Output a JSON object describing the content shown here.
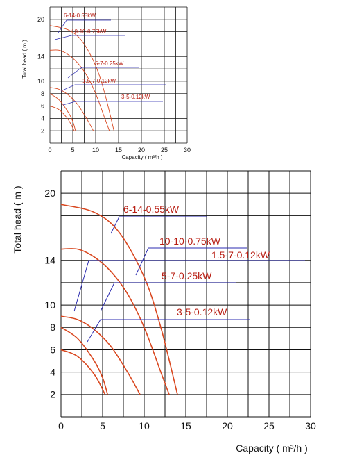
{
  "chart_data": [
    {
      "type": "line",
      "xlabel": "Capacity ( m³/h )",
      "ylabel": "Total head ( m )",
      "xlim": [
        0,
        30
      ],
      "ylim": [
        0,
        22
      ],
      "x_ticks": [
        "0",
        "5",
        "10",
        "15",
        "20",
        "25",
        "30"
      ],
      "y_ticks": [
        "2",
        "4",
        "6",
        "8",
        "10",
        "14",
        "20"
      ],
      "grid": true,
      "colors": {
        "curve": "#d9471f",
        "label": "#b81d12",
        "leader": "#2b2bb0"
      },
      "series": [
        {
          "name": "6-14-0.55kW",
          "x": [
            0,
            4,
            7,
            10,
            12,
            14
          ],
          "y": [
            19.0,
            18.3,
            16.5,
            12.5,
            8.0,
            2.0
          ]
        },
        {
          "name": "10-10-0.75kW",
          "x": [
            0,
            2,
            4,
            6,
            8,
            10,
            12,
            13
          ],
          "y": [
            15.0,
            15.0,
            14.3,
            13.0,
            11.0,
            8.0,
            4.0,
            2.0
          ]
        },
        {
          "name": "1.5-7-0.12kW",
          "x": [
            0,
            2,
            4,
            5,
            5.6
          ],
          "y": [
            8.0,
            7.0,
            5.0,
            3.5,
            2.0
          ]
        },
        {
          "name": "5-7-0.25kW",
          "x": [
            0,
            2,
            4,
            6,
            8,
            9.5
          ],
          "y": [
            9.0,
            8.7,
            7.8,
            6.3,
            4.0,
            2.0
          ]
        },
        {
          "name": "3-5-0.12kW",
          "x": [
            0,
            2,
            4,
            5.3
          ],
          "y": [
            6.0,
            5.4,
            3.8,
            2.0
          ]
        }
      ]
    },
    {
      "type": "line",
      "xlabel": "Capacity ( m³/h )",
      "ylabel": "Total head ( m )",
      "xlim": [
        0,
        30
      ],
      "ylim": [
        0,
        22
      ],
      "x_ticks": [
        "0",
        "5",
        "10",
        "15",
        "20",
        "25",
        "30"
      ],
      "y_ticks": [
        "2",
        "4",
        "6",
        "8",
        "10",
        "14",
        "20"
      ],
      "grid": true,
      "colors": {
        "curve": "#d9471f",
        "label": "#b81d12",
        "leader": "#2b2bb0"
      },
      "series": [
        {
          "name": "6-14-0.55kW",
          "x": [
            0,
            4,
            7,
            10,
            12,
            14
          ],
          "y": [
            19.0,
            18.3,
            16.5,
            12.5,
            8.0,
            2.0
          ]
        },
        {
          "name": "10-10-0.75kW",
          "x": [
            0,
            2,
            4,
            6,
            8,
            10,
            12,
            13
          ],
          "y": [
            15.0,
            15.0,
            14.3,
            13.0,
            11.0,
            8.0,
            4.0,
            2.0
          ]
        },
        {
          "name": "1.5-7-0.12kW",
          "x": [
            0,
            2,
            4,
            5,
            5.6
          ],
          "y": [
            8.0,
            7.0,
            5.0,
            3.5,
            2.0
          ]
        },
        {
          "name": "5-7-0.25kW",
          "x": [
            0,
            2,
            4,
            6,
            8,
            9.5
          ],
          "y": [
            9.0,
            8.7,
            7.8,
            6.3,
            4.0,
            2.0
          ]
        },
        {
          "name": "3-5-0.12kW",
          "x": [
            0,
            2,
            4,
            5.3
          ],
          "y": [
            6.0,
            5.4,
            3.8,
            2.0
          ]
        }
      ]
    }
  ]
}
